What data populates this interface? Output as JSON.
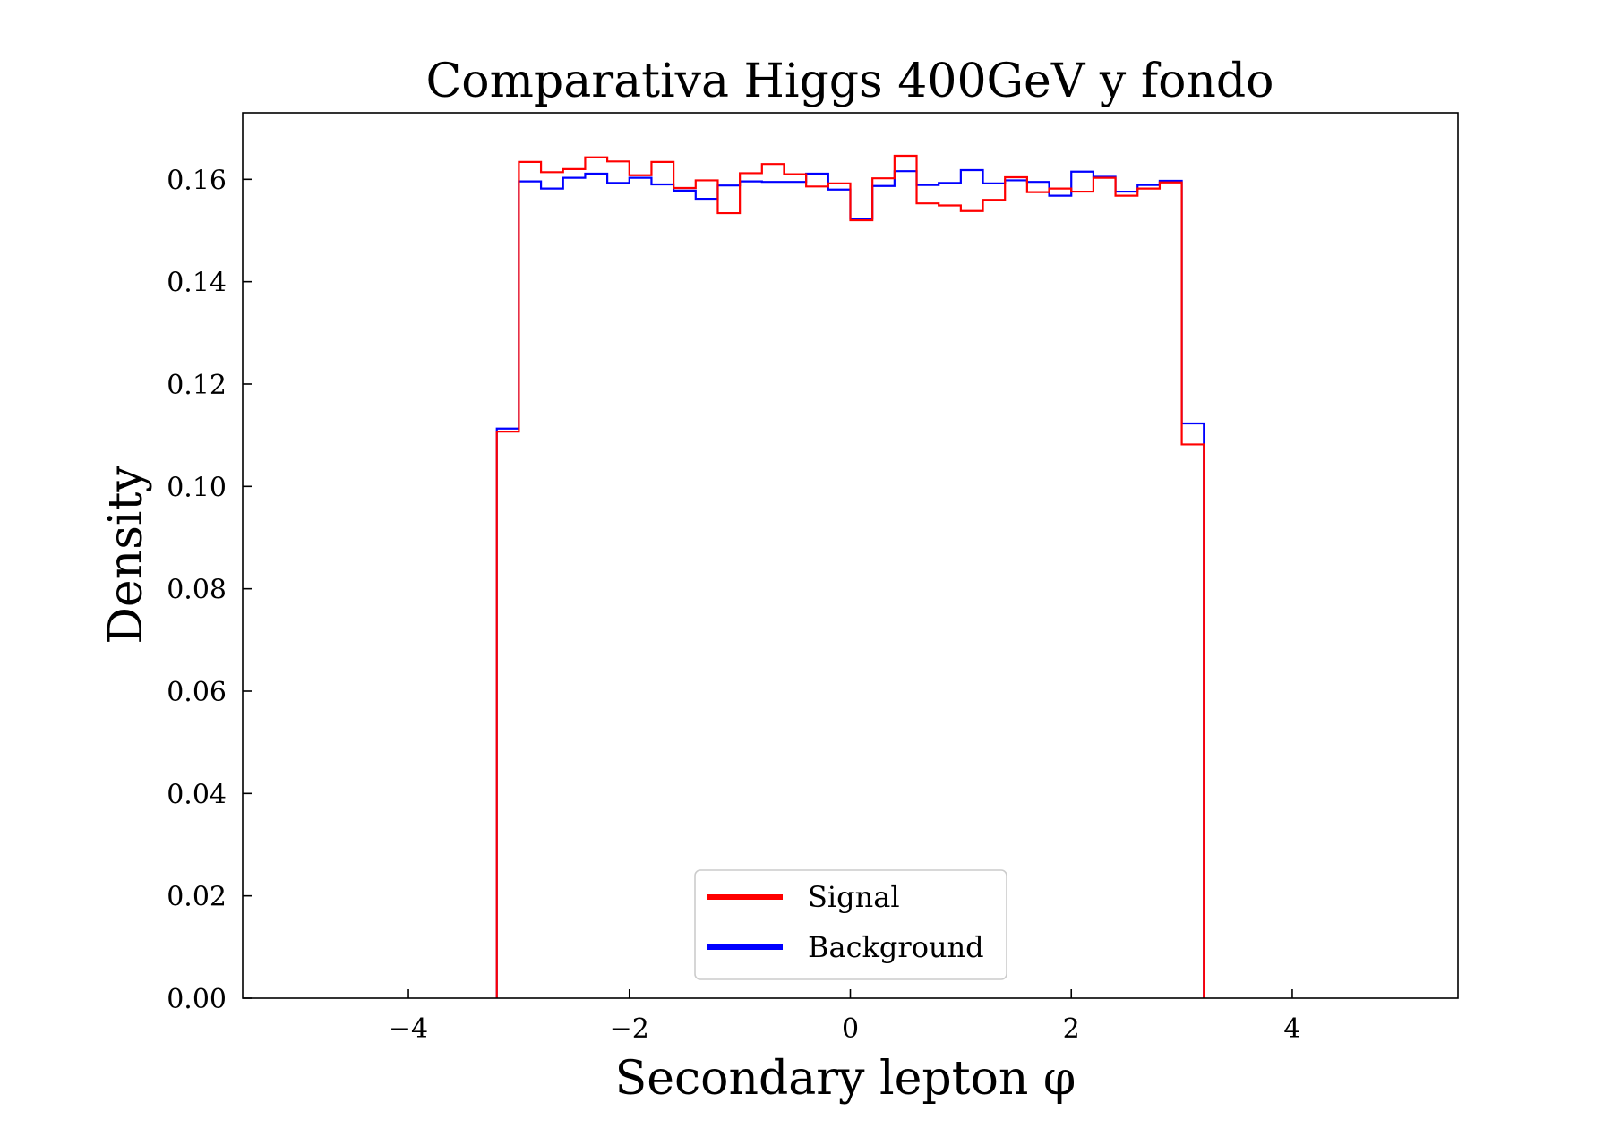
{
  "chart_data": {
    "type": "histogram-step",
    "title": "Comparativa Higgs 400GeV y fondo",
    "xlabel": "Secondary lepton φ",
    "ylabel": "Density",
    "xlim": [
      -5.5,
      5.5
    ],
    "ylim": [
      0,
      0.173
    ],
    "xticks": [
      -4,
      -2,
      0,
      2,
      4
    ],
    "xtick_labels": [
      "−4",
      "−2",
      "0",
      "2",
      "4"
    ],
    "yticks": [
      0,
      0.02,
      0.04,
      0.06,
      0.08,
      0.1,
      0.12,
      0.14,
      0.16
    ],
    "ytick_labels": [
      "0.00",
      "0.02",
      "0.04",
      "0.06",
      "0.08",
      "0.10",
      "0.12",
      "0.14",
      "0.16"
    ],
    "grid": false,
    "legend_position": "bottom-center",
    "bin_edges": [
      -3.2,
      -3.0,
      -2.8,
      -2.6,
      -2.4,
      -2.2,
      -2.0,
      -1.8,
      -1.6,
      -1.4,
      -1.2,
      -1.0,
      -0.8,
      -0.6,
      -0.4,
      -0.2,
      0.0,
      0.2,
      0.4,
      0.6,
      0.8,
      1.0,
      1.2,
      1.4,
      1.6,
      1.8,
      2.0,
      2.2,
      2.4,
      2.6,
      2.8,
      3.0,
      3.2
    ],
    "series": [
      {
        "name": "Signal",
        "color": "#ff0000",
        "values": [
          0.1107,
          0.1634,
          0.1614,
          0.162,
          0.1643,
          0.1635,
          0.1608,
          0.1634,
          0.1583,
          0.1598,
          0.1534,
          0.1612,
          0.163,
          0.161,
          0.1586,
          0.1592,
          0.152,
          0.1602,
          0.1646,
          0.1553,
          0.1549,
          0.1538,
          0.156,
          0.1604,
          0.1575,
          0.1582,
          0.1576,
          0.1603,
          0.1568,
          0.1582,
          0.1594,
          0.1082
        ]
      },
      {
        "name": "Background",
        "color": "#0000ff",
        "values": [
          0.1113,
          0.1596,
          0.1582,
          0.1603,
          0.1611,
          0.1593,
          0.1603,
          0.159,
          0.1578,
          0.1562,
          0.1588,
          0.1596,
          0.1595,
          0.1595,
          0.1611,
          0.158,
          0.1523,
          0.1587,
          0.1616,
          0.1589,
          0.1593,
          0.1618,
          0.1592,
          0.1598,
          0.1595,
          0.1568,
          0.1615,
          0.1605,
          0.1576,
          0.1589,
          0.1597,
          0.1123
        ]
      }
    ]
  }
}
